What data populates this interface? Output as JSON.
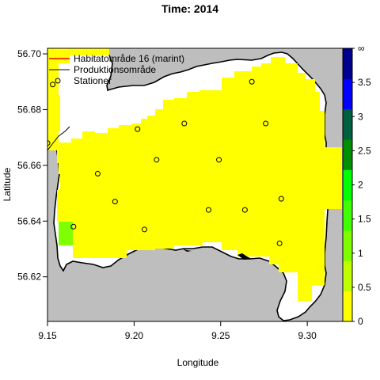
{
  "title": "Time: 2014",
  "axes": {
    "xlabel": "Longitude",
    "ylabel": "Latitude",
    "xlim": [
      9.15,
      9.326
    ],
    "ylim": [
      56.604,
      56.702
    ],
    "x_ticks": [
      "9.15",
      "9.20",
      "9.25",
      "9.30"
    ],
    "y_ticks": [
      "56.62",
      "56.64",
      "56.66",
      "56.68",
      "56.70"
    ]
  },
  "legend": {
    "placement": "top-left",
    "items": [
      {
        "label": "Habitatområde 16 (marint)",
        "symbol": "line",
        "color": "#ff0000"
      },
      {
        "label": "Produktionsområde",
        "symbol": "line",
        "color": "#000000"
      },
      {
        "label": "Stationer",
        "symbol": "circle",
        "color": "#000000"
      }
    ]
  },
  "colorbar": {
    "tick_labels": [
      "0",
      "0.5",
      "1",
      "1.5",
      "2",
      "2.5",
      "3",
      "3.5",
      "∞"
    ],
    "colors": [
      "#ffff00",
      "#bfff00",
      "#7fff00",
      "#3fff00",
      "#00ff00",
      "#008f00",
      "#005f3f",
      "#0000ff",
      "#00008f"
    ]
  },
  "colors": {
    "land": "#bebebe",
    "water_value": "#ffff00",
    "low_cell": "#7fff00"
  },
  "stations": [
    {
      "lon": 9.153,
      "lat": 56.689
    },
    {
      "lon": 9.15,
      "lat": 56.668
    },
    {
      "lon": 9.202,
      "lat": 56.673
    },
    {
      "lon": 9.229,
      "lat": 56.675
    },
    {
      "lon": 9.268,
      "lat": 56.69
    },
    {
      "lon": 9.276,
      "lat": 56.675
    },
    {
      "lon": 9.213,
      "lat": 56.662
    },
    {
      "lon": 9.249,
      "lat": 56.662
    },
    {
      "lon": 9.179,
      "lat": 56.657
    },
    {
      "lon": 9.189,
      "lat": 56.647
    },
    {
      "lon": 9.243,
      "lat": 56.644
    },
    {
      "lon": 9.264,
      "lat": 56.644
    },
    {
      "lon": 9.285,
      "lat": 56.648
    },
    {
      "lon": 9.165,
      "lat": 56.638
    },
    {
      "lon": 9.206,
      "lat": 56.637
    },
    {
      "lon": 9.284,
      "lat": 56.632
    }
  ]
}
